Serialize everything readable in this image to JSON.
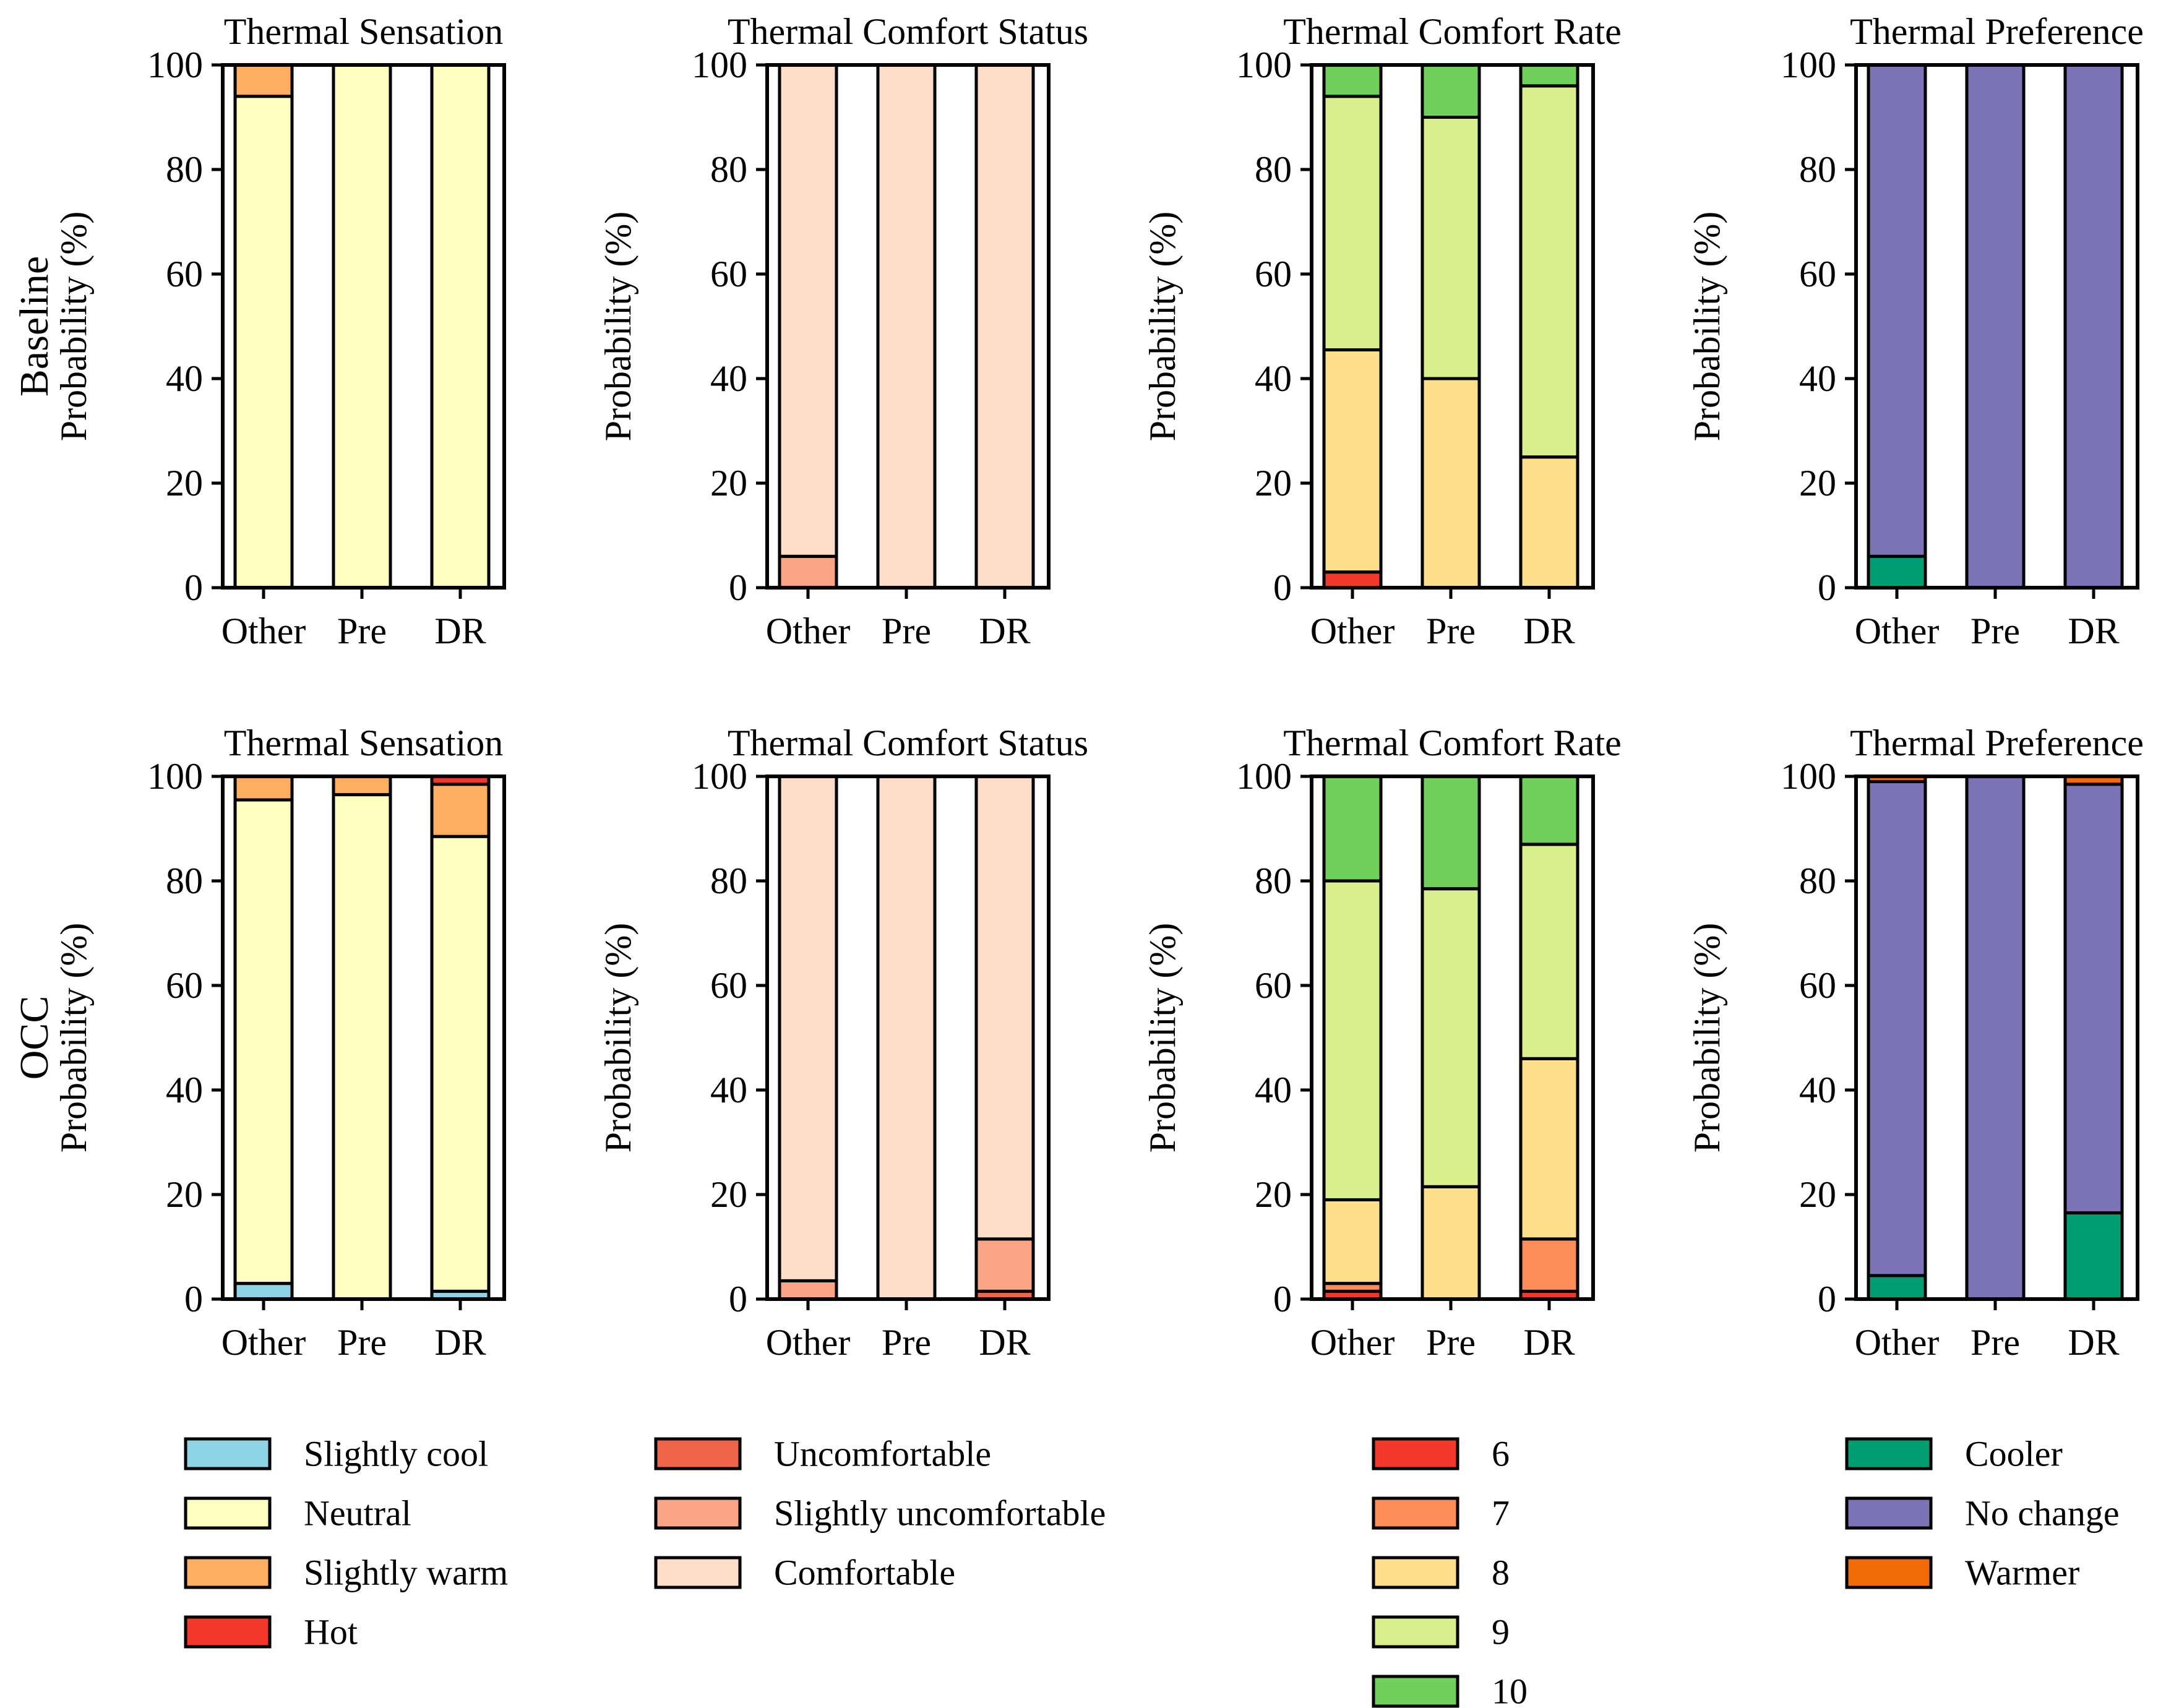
{
  "chart_data": {
    "type": "bar",
    "stacked": true,
    "rows": [
      "Baseline",
      "OCC"
    ],
    "categories": [
      "Other",
      "Pre",
      "DR"
    ],
    "ylabel": "Probability (%)",
    "ylim": [
      0,
      100
    ],
    "yticks": [
      "0",
      "20",
      "40",
      "60",
      "80",
      "100"
    ],
    "panels": [
      {
        "title": "Thermal Sensation",
        "row": 0,
        "col": 0,
        "series": [
          {
            "name": "Slightly cool",
            "values": [
              0,
              0,
              0
            ]
          },
          {
            "name": "Neutral",
            "values": [
              94,
              100,
              100
            ]
          },
          {
            "name": "Slightly warm",
            "values": [
              6,
              0,
              0
            ]
          },
          {
            "name": "Hot",
            "values": [
              0,
              0,
              0
            ]
          }
        ]
      },
      {
        "title": "Thermal Comfort Status",
        "row": 0,
        "col": 1,
        "series": [
          {
            "name": "Uncomfortable",
            "values": [
              0,
              0,
              0
            ]
          },
          {
            "name": "Slightly uncomfortable",
            "values": [
              6,
              0,
              0
            ]
          },
          {
            "name": "Comfortable",
            "values": [
              94,
              100,
              100
            ]
          }
        ]
      },
      {
        "title": "Thermal Comfort Rate",
        "row": 0,
        "col": 2,
        "series": [
          {
            "name": "6",
            "values": [
              3,
              0,
              0
            ]
          },
          {
            "name": "7",
            "values": [
              0,
              0,
              0
            ]
          },
          {
            "name": "8",
            "values": [
              42.5,
              40,
              25
            ]
          },
          {
            "name": "9",
            "values": [
              48.5,
              50,
              71
            ]
          },
          {
            "name": "10",
            "values": [
              6,
              10,
              4
            ]
          }
        ]
      },
      {
        "title": "Thermal Preference",
        "row": 0,
        "col": 3,
        "series": [
          {
            "name": "Cooler",
            "values": [
              6,
              0,
              0
            ]
          },
          {
            "name": "No change",
            "values": [
              94,
              100,
              100
            ]
          },
          {
            "name": "Warmer",
            "values": [
              0,
              0,
              0
            ]
          }
        ]
      },
      {
        "title": "Thermal Sensation",
        "row": 1,
        "col": 0,
        "series": [
          {
            "name": "Slightly cool",
            "values": [
              3,
              0,
              1.5
            ]
          },
          {
            "name": "Neutral",
            "values": [
              92.5,
              96.5,
              87
            ]
          },
          {
            "name": "Slightly warm",
            "values": [
              4.5,
              3.5,
              10
            ]
          },
          {
            "name": "Hot",
            "values": [
              0,
              0,
              1.5
            ]
          }
        ]
      },
      {
        "title": "Thermal Comfort Status",
        "row": 1,
        "col": 1,
        "series": [
          {
            "name": "Uncomfortable",
            "values": [
              0,
              0,
              1.5
            ]
          },
          {
            "name": "Slightly uncomfortable",
            "values": [
              3.5,
              0,
              10
            ]
          },
          {
            "name": "Comfortable",
            "values": [
              96.5,
              100,
              88.5
            ]
          }
        ]
      },
      {
        "title": "Thermal Comfort Rate",
        "row": 1,
        "col": 2,
        "series": [
          {
            "name": "6",
            "values": [
              1.5,
              0,
              1.5
            ]
          },
          {
            "name": "7",
            "values": [
              1.5,
              0,
              10
            ]
          },
          {
            "name": "8",
            "values": [
              16,
              21.5,
              34.5
            ]
          },
          {
            "name": "9",
            "values": [
              61,
              57,
              41
            ]
          },
          {
            "name": "10",
            "values": [
              20,
              21.5,
              13
            ]
          }
        ]
      },
      {
        "title": "Thermal Preference",
        "row": 1,
        "col": 3,
        "series": [
          {
            "name": "Cooler",
            "values": [
              4.5,
              0,
              16.5
            ]
          },
          {
            "name": "No change",
            "values": [
              94.5,
              100,
              82
            ]
          },
          {
            "name": "Warmer",
            "values": [
              1,
              0,
              1.5
            ]
          }
        ]
      }
    ],
    "legends": [
      {
        "items": [
          {
            "label": "Slightly cool",
            "color": "#8fd3e6"
          },
          {
            "label": "Neutral",
            "color": "#ffffbf"
          },
          {
            "label": "Slightly warm",
            "color": "#fdae61"
          },
          {
            "label": "Hot",
            "color": "#f2372b"
          }
        ]
      },
      {
        "items": [
          {
            "label": "Uncomfortable",
            "color": "#ef654a"
          },
          {
            "label": "Slightly uncomfortable",
            "color": "#fca486"
          },
          {
            "label": "Comfortable",
            "color": "#fddcc8"
          }
        ]
      },
      {
        "items": [
          {
            "label": "6",
            "color": "#f2372b"
          },
          {
            "label": "7",
            "color": "#fc8d59"
          },
          {
            "label": "8",
            "color": "#fee08b"
          },
          {
            "label": "9",
            "color": "#d9ef8b"
          },
          {
            "label": "10",
            "color": "#6fd05b"
          }
        ]
      },
      {
        "items": [
          {
            "label": "Cooler",
            "color": "#019e73"
          },
          {
            "label": "No change",
            "color": "#7b73b6"
          },
          {
            "label": "Warmer",
            "color": "#f26b07"
          }
        ]
      }
    ]
  }
}
